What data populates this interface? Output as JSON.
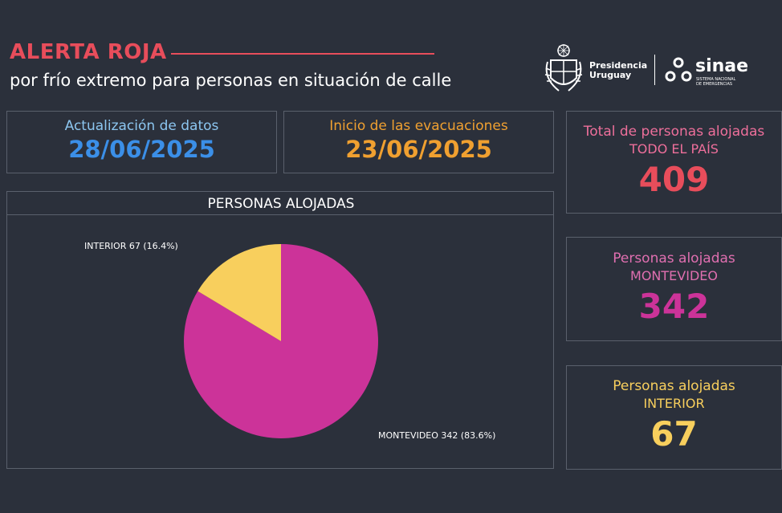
{
  "header": {
    "title": "ALERTA ROJA",
    "subtitle": "por frío extremo para personas en situación de calle"
  },
  "logos": {
    "presidencia_line1": "Presidencia",
    "presidencia_line2": "Uruguay",
    "sinae_name": "sinae",
    "sinae_line1": "SISTEMA NACIONAL",
    "sinae_line2": "DE EMERGENCIAS"
  },
  "dates": {
    "update_label": "Actualización de datos",
    "update_value": "28/06/2025",
    "start_label": "Inicio de las evacuaciones",
    "start_value": "23/06/2025"
  },
  "kpis": {
    "total_label": "Total de personas alojadas",
    "total_sub": "TODO EL PAÍS",
    "total_value": "409",
    "mvd_label": "Personas alojadas",
    "mvd_sub": "MONTEVIDEO",
    "mvd_value": "342",
    "int_label": "Personas alojadas",
    "int_sub": "INTERIOR",
    "int_value": "67"
  },
  "chart_data": {
    "type": "pie",
    "title": "PERSONAS ALOJADAS",
    "slices": [
      {
        "name": "MONTEVIDEO",
        "value": 342,
        "label": "MONTEVIDEO 342 (83.6%)",
        "color": "#cc3399"
      },
      {
        "name": "INTERIOR",
        "value": 67,
        "label": "INTERIOR 67 (16.4%)",
        "color": "#f8cf5d"
      }
    ]
  },
  "colors": {
    "background": "#2b303b",
    "red": "#e84d5b",
    "blue": "#3b8fe8",
    "orange": "#f0a030",
    "pink_label": "#ee6f9b",
    "magenta": "#cc3399",
    "yellow": "#f8cf5d",
    "light_blue": "#8cc6f0",
    "border": "#5a606c"
  }
}
